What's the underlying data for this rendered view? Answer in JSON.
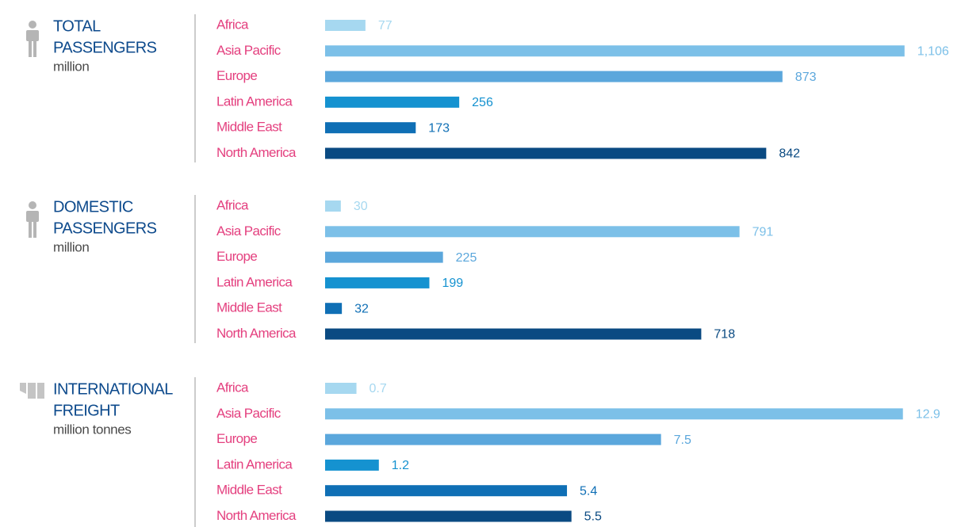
{
  "chart_data": [
    {
      "type": "bar",
      "title": [
        "TOTAL",
        "PASSENGERS"
      ],
      "subtitle": "million",
      "categories": [
        "Africa",
        "Asia Pacific",
        "Europe",
        "Latin America",
        "Middle East",
        "North America"
      ],
      "values": [
        77,
        1106,
        873,
        256,
        173,
        842
      ],
      "value_labels": [
        "77",
        "1,106",
        "873",
        "256",
        "173",
        "842"
      ],
      "colors": [
        "#a6d8f0",
        "#7cc0e8",
        "#5ba7dc",
        "#1592d0",
        "#0f6fb5",
        "#0a4a82"
      ],
      "xlim": [
        0,
        1120
      ]
    },
    {
      "type": "bar",
      "title": [
        "DOMESTIC",
        "PASSENGERS"
      ],
      "subtitle": "million",
      "categories": [
        "Africa",
        "Asia Pacific",
        "Europe",
        "Latin America",
        "Middle East",
        "North America"
      ],
      "values": [
        30,
        791,
        225,
        199,
        32,
        718
      ],
      "colors": [
        "#a6d8f0",
        "#7cc0e8",
        "#5ba7dc",
        "#1592d0",
        "#0f6fb5",
        "#0a4a82"
      ],
      "xlim": [
        0,
        1120
      ]
    },
    {
      "type": "bar",
      "title": [
        "INTERNATIONAL",
        "FREIGHT"
      ],
      "subtitle": "million tonnes",
      "categories": [
        "Africa",
        "Asia Pacific",
        "Europe",
        "Latin America",
        "Middle East",
        "North America"
      ],
      "values": [
        0.7,
        12.9,
        7.5,
        1.2,
        5.4,
        5.5
      ],
      "colors": [
        "#a6d8f0",
        "#7cc0e8",
        "#5ba7dc",
        "#1592d0",
        "#0f6fb5",
        "#0a4a82"
      ],
      "xlim": [
        0,
        13.1
      ]
    }
  ]
}
